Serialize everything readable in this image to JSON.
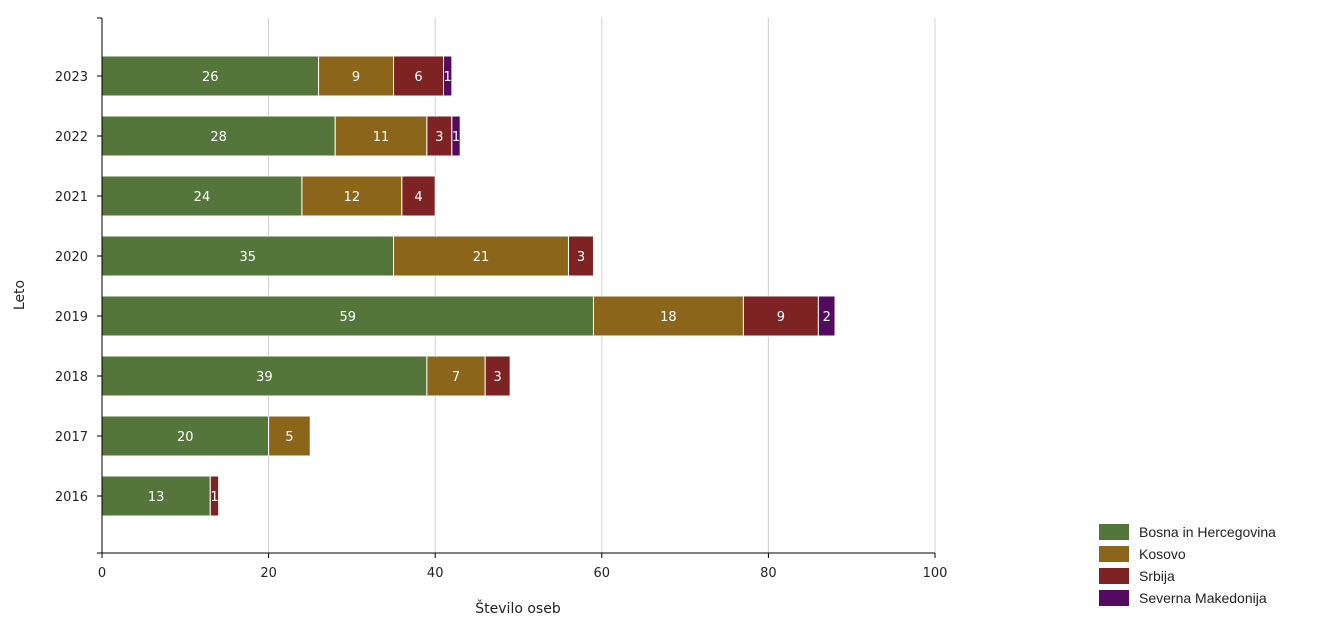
{
  "chart_data": {
    "type": "bar",
    "orientation": "horizontal",
    "stacked": true,
    "title": "",
    "xlabel": "Število oseb",
    "ylabel": "Leto",
    "xlim": [
      0,
      100
    ],
    "x_ticks": [
      "0",
      "20",
      "40",
      "60",
      "80",
      "100"
    ],
    "categories": [
      "2023",
      "2022",
      "2021",
      "2020",
      "2019",
      "2018",
      "2017",
      "2016"
    ],
    "series": [
      {
        "name": "Bosna in Hercegovina",
        "color": "#55763a",
        "values": [
          26,
          28,
          24,
          35,
          59,
          39,
          20,
          13
        ]
      },
      {
        "name": "Kosovo",
        "color": "#8b6519",
        "values": [
          9,
          11,
          12,
          21,
          18,
          7,
          5,
          0
        ]
      },
      {
        "name": "Srbija",
        "color": "#7d2323",
        "values": [
          6,
          3,
          4,
          3,
          9,
          3,
          0,
          1
        ]
      },
      {
        "name": "Severna Makedonija",
        "color": "#540a5e",
        "values": [
          1,
          1,
          0,
          0,
          2,
          0,
          0,
          0
        ]
      }
    ],
    "grid": "vertical",
    "legend": "bottom-right"
  }
}
